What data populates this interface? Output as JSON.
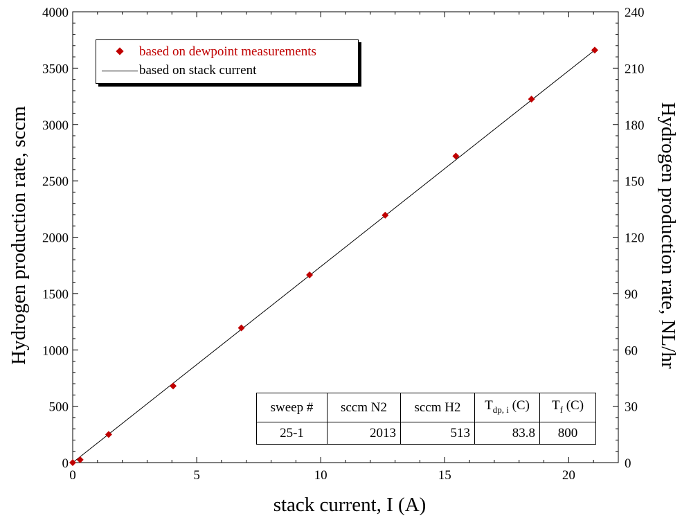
{
  "chart_data": {
    "type": "scatter",
    "xlabel": "stack current, I (A)",
    "ylabel": "Hydrogen production rate, sccm",
    "y2label": "Hydrogen production rate, NL/hr",
    "xlim": [
      0,
      22
    ],
    "ylim": [
      0,
      4000
    ],
    "y2lim": [
      0,
      240
    ],
    "xticks": [
      0,
      5,
      10,
      15,
      20
    ],
    "yticks": [
      0,
      500,
      1000,
      1500,
      2000,
      2500,
      3000,
      3500,
      4000
    ],
    "y2ticks": [
      0,
      30,
      60,
      90,
      120,
      150,
      180,
      210,
      240
    ],
    "grid": false,
    "legend_position": "top-left",
    "series": [
      {
        "name": "based on dewpoint measurements",
        "kind": "markers",
        "marker": "diamond",
        "color": "#c00000",
        "x": [
          0,
          0.3,
          1.45,
          4.05,
          6.8,
          9.55,
          12.6,
          15.45,
          18.5,
          21.05
        ],
        "y": [
          0,
          25,
          250,
          680,
          1195,
          1665,
          2195,
          2720,
          3225,
          3660
        ]
      },
      {
        "name": "based on stack current",
        "kind": "line",
        "color": "#000000",
        "x": [
          0,
          21.05
        ],
        "y": [
          0,
          3660
        ]
      }
    ]
  },
  "table": {
    "headers": {
      "sweep": "sweep #",
      "n2": "sccm N2",
      "h2": "sccm H2",
      "tdp_main": "T",
      "tdp_sub": "dp, i",
      "tdp_unit": "(C)",
      "tf_main": "T",
      "tf_sub": "f",
      "tf_unit": "(C)"
    },
    "values": {
      "sweep": "25-1",
      "n2": "2013",
      "h2": "513",
      "tdp": "83.8",
      "tf": "800"
    }
  }
}
